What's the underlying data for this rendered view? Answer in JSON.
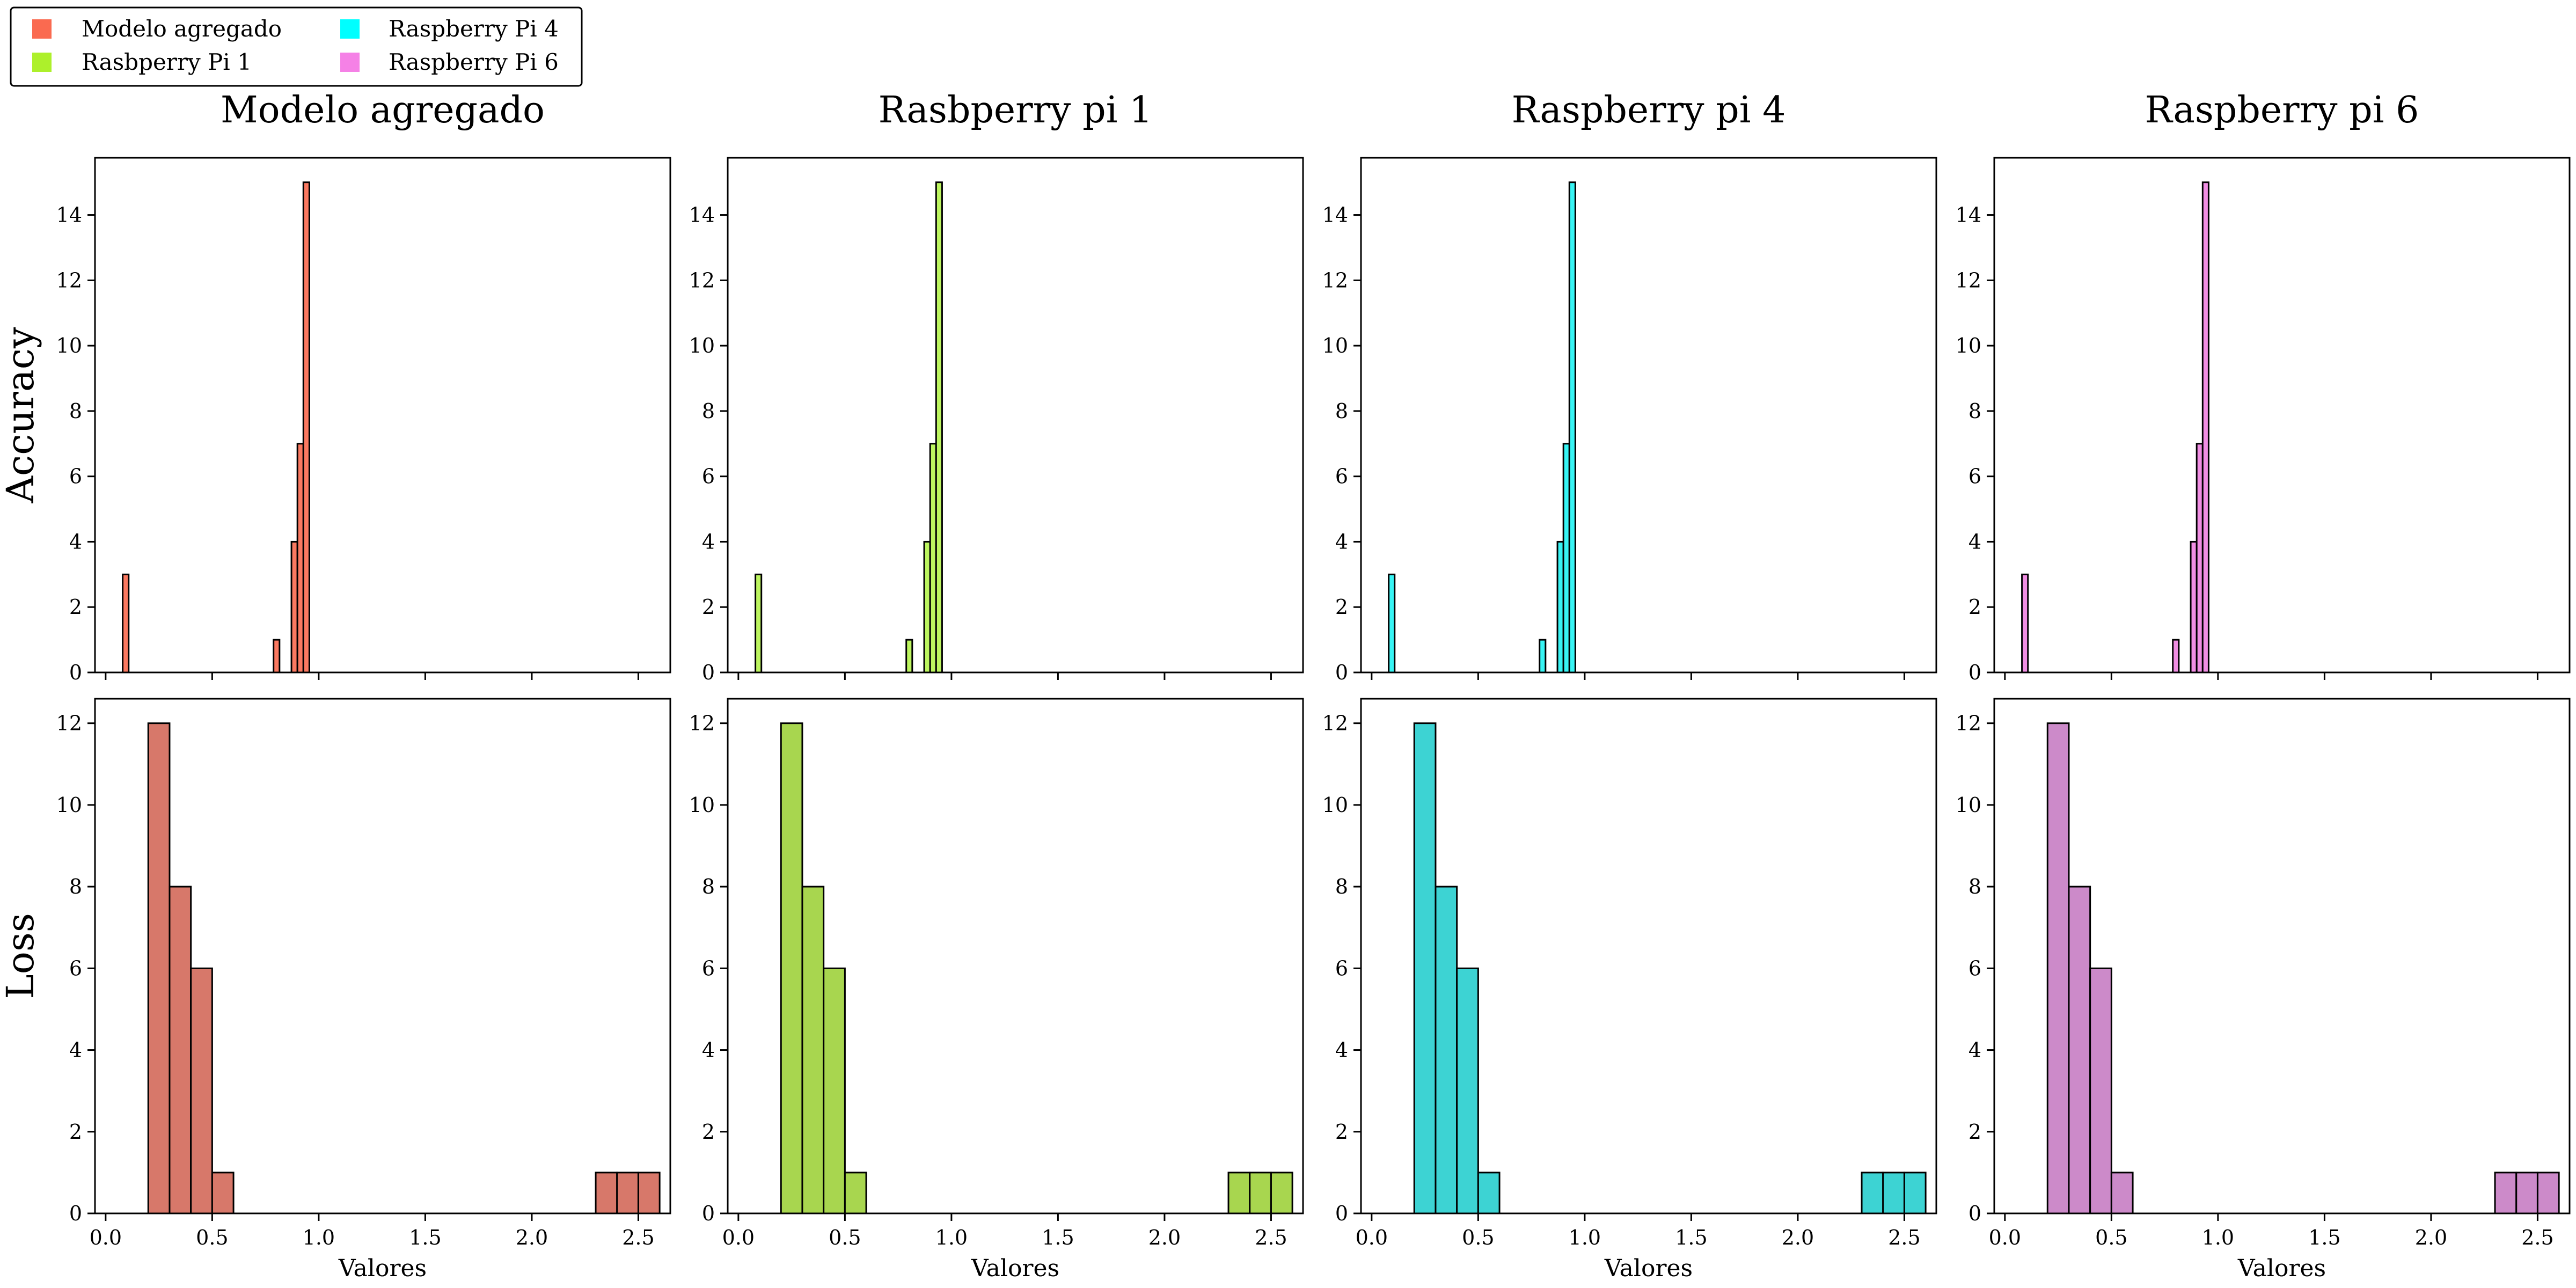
{
  "legend": {
    "placement": "top-left",
    "entries": [
      {
        "label": "Modelo agregado",
        "color": "#fa6a50"
      },
      {
        "label": "Rasbperry Pi 1",
        "color": "#adf02b"
      },
      {
        "label": "Raspberry Pi 4",
        "color": "#00ffff"
      },
      {
        "label": "Raspberry Pi 6",
        "color": "#f581e6"
      }
    ]
  },
  "chart_data": {
    "type": "bar",
    "subtype": "histogram-grid",
    "xlabel": "Valores",
    "x_ticks": [
      0.0,
      0.5,
      1.0,
      1.5,
      2.0,
      2.5
    ],
    "x_tick_labels": [
      "0.0",
      "0.5",
      "1.0",
      "1.5",
      "2.0",
      "2.5"
    ],
    "xlim": [
      -0.05,
      2.65
    ],
    "columns": [
      {
        "title": "Modelo agregado",
        "accuracy_color": "#fa7961",
        "loss_color": "#d7786a"
      },
      {
        "title": "Rasbperry pi 1",
        "accuracy_color": "#bdf560",
        "loss_color": "#a8d64f"
      },
      {
        "title": "Raspberry pi 4",
        "accuracy_color": "#38f4f4",
        "loss_color": "#3dd3d3"
      },
      {
        "title": "Raspberry pi 6",
        "accuracy_color": "#f18ee3",
        "loss_color": "#cc8ac9"
      }
    ],
    "rows": [
      {
        "ylabel": "Accuracy",
        "ylim": [
          0,
          15.75
        ],
        "y_ticks": [
          0,
          2,
          4,
          6,
          8,
          10,
          12,
          14
        ],
        "y_tick_labels": [
          "0",
          "2",
          "4",
          "6",
          "8",
          "10",
          "12",
          "14"
        ],
        "bins": [
          {
            "x0": 0.08,
            "x1": 0.108,
            "count": 3
          },
          {
            "x0": 0.788,
            "x1": 0.816,
            "count": 1
          },
          {
            "x0": 0.872,
            "x1": 0.9,
            "count": 4
          },
          {
            "x0": 0.9,
            "x1": 0.928,
            "count": 7
          },
          {
            "x0": 0.928,
            "x1": 0.956,
            "count": 15
          }
        ]
      },
      {
        "ylabel": "Loss",
        "ylim": [
          0,
          12.6
        ],
        "y_ticks": [
          0,
          2,
          4,
          6,
          8,
          10,
          12
        ],
        "y_tick_labels": [
          "0",
          "2",
          "4",
          "6",
          "8",
          "10",
          "12"
        ],
        "bins": [
          {
            "x0": 0.2,
            "x1": 0.3,
            "count": 12
          },
          {
            "x0": 0.3,
            "x1": 0.4,
            "count": 8
          },
          {
            "x0": 0.4,
            "x1": 0.5,
            "count": 6
          },
          {
            "x0": 0.5,
            "x1": 0.6,
            "count": 1
          },
          {
            "x0": 2.3,
            "x1": 2.4,
            "count": 1
          },
          {
            "x0": 2.4,
            "x1": 2.5,
            "count": 1
          },
          {
            "x0": 2.5,
            "x1": 2.6,
            "count": 1
          }
        ]
      }
    ]
  }
}
